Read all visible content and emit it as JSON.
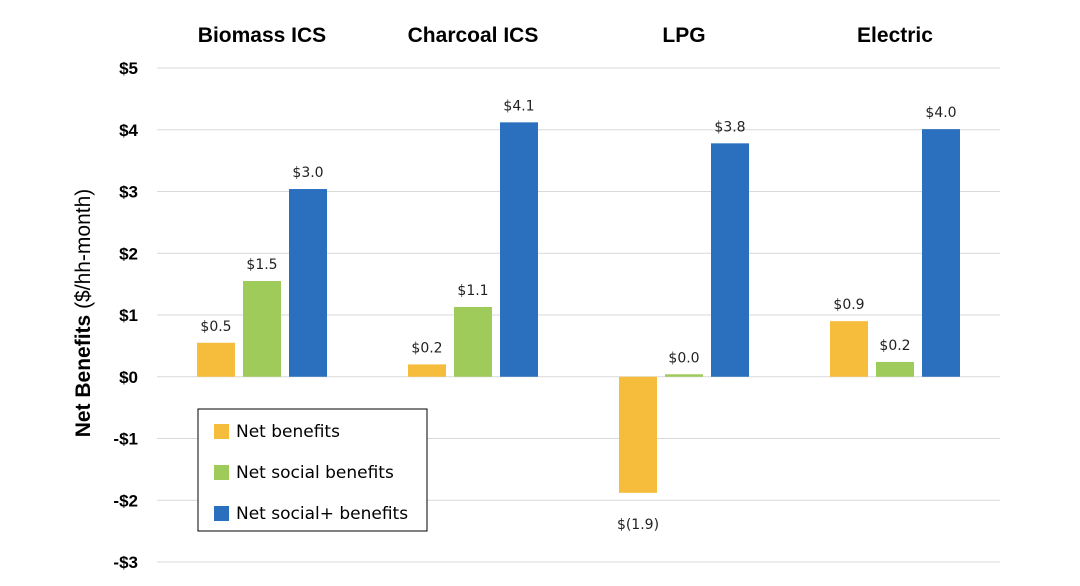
{
  "chart_data": {
    "type": "bar",
    "categories": [
      "Biomass ICS",
      "Charcoal ICS",
      "LPG",
      "Electric"
    ],
    "series": [
      {
        "name": "Net benefits",
        "color": "#f6bd3c",
        "values": [
          0.55,
          0.2,
          -1.88,
          0.9
        ],
        "labels": [
          "$0.5",
          "$0.2",
          "$(1.9)",
          "$0.9"
        ]
      },
      {
        "name": "Net social benefits",
        "color": "#9fcb5b",
        "values": [
          1.55,
          1.13,
          0.04,
          0.24
        ],
        "labels": [
          "$1.5",
          "$1.1",
          "$0.0",
          "$0.2"
        ]
      },
      {
        "name": "Net social+ benefits",
        "color": "#2a70be",
        "values": [
          3.04,
          4.12,
          3.78,
          4.01
        ],
        "labels": [
          "$3.0",
          "$4.1",
          "$3.8",
          "$4.0"
        ]
      }
    ],
    "ylabel_bold": "Net Benefits",
    "ylabel_normal": " ($/hh-month)",
    "ylim": [
      -3,
      5
    ],
    "yticks": [
      5,
      4,
      3,
      2,
      1,
      0,
      -1,
      -2,
      -3
    ],
    "ytick_labels": [
      "$5",
      "$4",
      "$3",
      "$2",
      "$1",
      "$0",
      "-$1",
      "-$2",
      "-$3"
    ],
    "grid": true,
    "legend_position": "bottom-left, inside plot"
  }
}
